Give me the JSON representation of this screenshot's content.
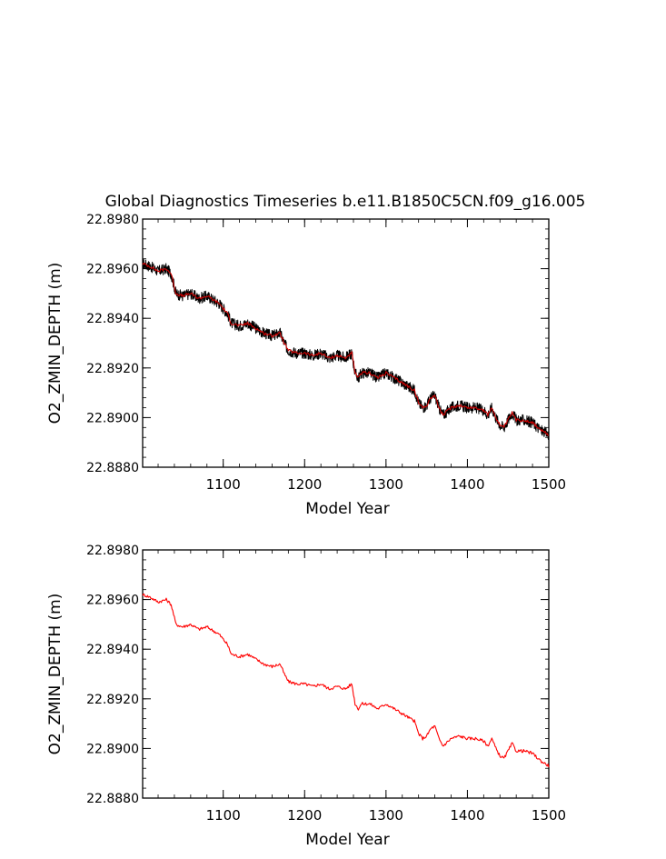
{
  "figure": {
    "title": "Global Diagnostics Timeseries b.e11.B1850C5CN.f09_g16.005"
  },
  "chart_data": [
    {
      "type": "line",
      "panel": "top",
      "title": "Global Diagnostics Timeseries b.e11.B1850C5CN.f09_g16.005",
      "xlabel": "Model Year",
      "ylabel": "O2_ZMIN_DEPTH (m)",
      "xlim": [
        1001,
        1500
      ],
      "ylim": [
        22.888,
        22.898
      ],
      "xticks": [
        "1100",
        "1200",
        "1300",
        "1400",
        "1500"
      ],
      "yticks": [
        "22.8880",
        "22.8900",
        "22.8920",
        "22.8940",
        "22.8960",
        "22.8980"
      ],
      "grid": false,
      "series": [
        {
          "color": "#000000",
          "style": "monthly values with noise band about ±0.0003 m around the annual mean",
          "x": [
            1001,
            1010,
            1020,
            1030,
            1036,
            1042,
            1050,
            1060,
            1070,
            1080,
            1090,
            1095,
            1105,
            1110,
            1120,
            1130,
            1140,
            1150,
            1160,
            1170,
            1175,
            1180,
            1190,
            1200,
            1210,
            1220,
            1230,
            1240,
            1250,
            1258,
            1262,
            1266,
            1270,
            1280,
            1290,
            1300,
            1310,
            1320,
            1330,
            1335,
            1340,
            1345,
            1350,
            1355,
            1360,
            1365,
            1370,
            1380,
            1390,
            1400,
            1410,
            1420,
            1425,
            1430,
            1435,
            1440,
            1445,
            1450,
            1455,
            1460,
            1470,
            1480,
            1490,
            1500
          ],
          "values": [
            22.8962,
            22.8961,
            22.8959,
            22.896,
            22.8958,
            22.895,
            22.8949,
            22.895,
            22.8948,
            22.8949,
            22.8947,
            22.8946,
            22.8942,
            22.8938,
            22.8937,
            22.8938,
            22.8936,
            22.8934,
            22.8933,
            22.8934,
            22.893,
            22.8927,
            22.8926,
            22.8926,
            22.8925,
            22.8926,
            22.8924,
            22.8925,
            22.8924,
            22.8926,
            22.8918,
            22.8916,
            22.8918,
            22.8918,
            22.8916,
            22.8918,
            22.8916,
            22.8914,
            22.8912,
            22.8911,
            22.8906,
            22.8904,
            22.8905,
            22.8908,
            22.8909,
            22.8904,
            22.8901,
            22.8904,
            22.8905,
            22.8904,
            22.8904,
            22.8903,
            22.8901,
            22.8904,
            22.89,
            22.8897,
            22.8896,
            22.8899,
            22.8902,
            22.8899,
            22.8899,
            22.8898,
            22.8895,
            22.8893
          ]
        },
        {
          "color": "#cc0000",
          "style": "annual mean",
          "x": [
            1001,
            1010,
            1020,
            1030,
            1036,
            1042,
            1050,
            1060,
            1070,
            1080,
            1090,
            1095,
            1105,
            1110,
            1120,
            1130,
            1140,
            1150,
            1160,
            1170,
            1175,
            1180,
            1190,
            1200,
            1210,
            1220,
            1230,
            1240,
            1250,
            1258,
            1262,
            1266,
            1270,
            1280,
            1290,
            1300,
            1310,
            1320,
            1330,
            1335,
            1340,
            1345,
            1350,
            1355,
            1360,
            1365,
            1370,
            1380,
            1390,
            1400,
            1410,
            1420,
            1425,
            1430,
            1435,
            1440,
            1445,
            1450,
            1455,
            1460,
            1470,
            1480,
            1490,
            1500
          ],
          "values": [
            22.8962,
            22.8961,
            22.8959,
            22.896,
            22.8958,
            22.895,
            22.8949,
            22.895,
            22.8948,
            22.8949,
            22.8947,
            22.8946,
            22.8942,
            22.8938,
            22.8937,
            22.8938,
            22.8936,
            22.8934,
            22.8933,
            22.8934,
            22.893,
            22.8927,
            22.8926,
            22.8926,
            22.8925,
            22.8926,
            22.8924,
            22.8925,
            22.8924,
            22.8926,
            22.8918,
            22.8916,
            22.8918,
            22.8918,
            22.8916,
            22.8918,
            22.8916,
            22.8914,
            22.8912,
            22.8911,
            22.8906,
            22.8904,
            22.8905,
            22.8908,
            22.8909,
            22.8904,
            22.8901,
            22.8904,
            22.8905,
            22.8904,
            22.8904,
            22.8903,
            22.8901,
            22.8904,
            22.89,
            22.8897,
            22.8896,
            22.8899,
            22.8902,
            22.8899,
            22.8899,
            22.8898,
            22.8895,
            22.8893
          ]
        }
      ]
    },
    {
      "type": "line",
      "panel": "bottom",
      "xlabel": "Model Year",
      "ylabel": "O2_ZMIN_DEPTH (m)",
      "xlim": [
        1001,
        1500
      ],
      "ylim": [
        22.888,
        22.898
      ],
      "xticks": [
        "1100",
        "1200",
        "1300",
        "1400",
        "1500"
      ],
      "yticks": [
        "22.8880",
        "22.8900",
        "22.8920",
        "22.8940",
        "22.8960",
        "22.8980"
      ],
      "grid": false,
      "series": [
        {
          "color": "#ff0000",
          "style": "annual mean",
          "x": [
            1001,
            1010,
            1020,
            1030,
            1036,
            1042,
            1050,
            1060,
            1070,
            1080,
            1090,
            1095,
            1105,
            1110,
            1120,
            1130,
            1140,
            1150,
            1160,
            1170,
            1175,
            1180,
            1190,
            1200,
            1210,
            1220,
            1230,
            1240,
            1250,
            1258,
            1262,
            1266,
            1270,
            1280,
            1290,
            1300,
            1310,
            1320,
            1330,
            1335,
            1340,
            1345,
            1350,
            1355,
            1360,
            1365,
            1370,
            1380,
            1390,
            1400,
            1410,
            1420,
            1425,
            1430,
            1435,
            1440,
            1445,
            1450,
            1455,
            1460,
            1470,
            1480,
            1490,
            1500
          ],
          "values": [
            22.8962,
            22.8961,
            22.8959,
            22.896,
            22.8958,
            22.895,
            22.8949,
            22.895,
            22.8948,
            22.8949,
            22.8947,
            22.8946,
            22.8942,
            22.8938,
            22.8937,
            22.8938,
            22.8936,
            22.8934,
            22.8933,
            22.8934,
            22.893,
            22.8927,
            22.8926,
            22.8926,
            22.8925,
            22.8926,
            22.8924,
            22.8925,
            22.8924,
            22.8926,
            22.8918,
            22.8916,
            22.8918,
            22.8918,
            22.8916,
            22.8918,
            22.8916,
            22.8914,
            22.8912,
            22.8911,
            22.8906,
            22.8904,
            22.8905,
            22.8908,
            22.8909,
            22.8904,
            22.8901,
            22.8904,
            22.8905,
            22.8904,
            22.8904,
            22.8903,
            22.8901,
            22.8904,
            22.89,
            22.8897,
            22.8896,
            22.8899,
            22.8902,
            22.8899,
            22.8899,
            22.8898,
            22.8895,
            22.8893
          ]
        }
      ]
    }
  ]
}
